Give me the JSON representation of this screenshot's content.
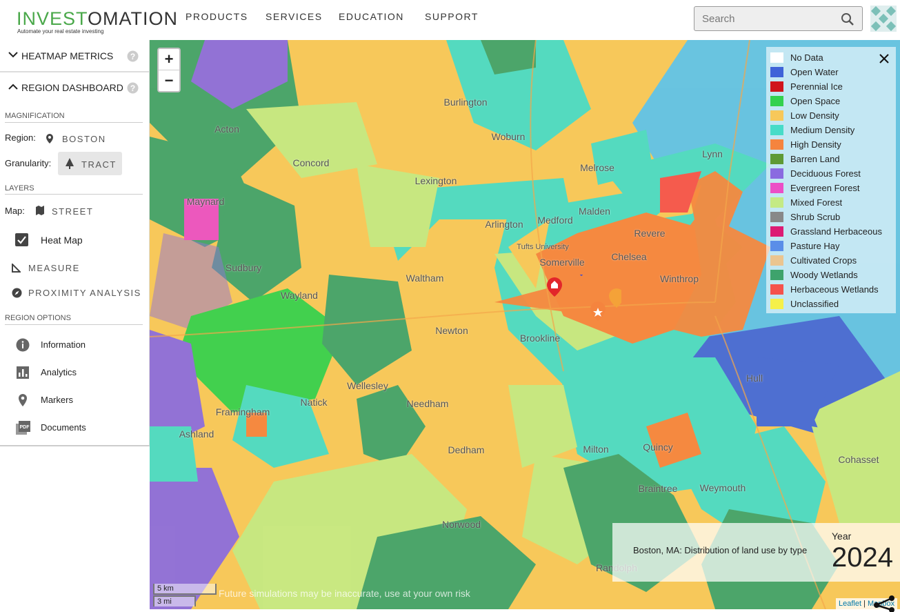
{
  "header": {
    "logo_a": "INVEST",
    "logo_b": "OMATION",
    "tagline": "Automate your real estate investing",
    "nav": [
      "PRODUCTS",
      "SERVICES",
      "EDUCATION",
      "SUPPORT"
    ],
    "search_placeholder": "Search"
  },
  "sidebar": {
    "heatmap_metrics": "HEATMAP METRICS",
    "region_dashboard": "REGION DASHBOARD",
    "magnification": "MAGNIFICATION",
    "region_label": "Region:",
    "region_value": "BOSTON",
    "granularity_label": "Granularity:",
    "granularity_value": "TRACT",
    "layers": "LAYERS",
    "map_label": "Map:",
    "map_value": "STREET",
    "heat_map": "Heat Map",
    "measure": "MEASURE",
    "proximity": "PROXIMITY ANALYSIS",
    "region_options": "REGION OPTIONS",
    "options": [
      "Information",
      "Analytics",
      "Markers",
      "Documents"
    ]
  },
  "map": {
    "zoom_in": "+",
    "zoom_out": "−",
    "legend": [
      {
        "label": "No Data",
        "color": "#ffffff"
      },
      {
        "label": "Open Water",
        "color": "#3f63d8"
      },
      {
        "label": "Perennial Ice",
        "color": "#d0141c"
      },
      {
        "label": "Open Space",
        "color": "#33d14e"
      },
      {
        "label": "Low Density",
        "color": "#f7c85a"
      },
      {
        "label": "Medium Density",
        "color": "#47dcc8"
      },
      {
        "label": "High Density",
        "color": "#f5843e"
      },
      {
        "label": "Barren Land",
        "color": "#5e9a35"
      },
      {
        "label": "Deciduous Forest",
        "color": "#8a6be0"
      },
      {
        "label": "Evergreen Forest",
        "color": "#ec4fc6"
      },
      {
        "label": "Mixed Forest",
        "color": "#c4ea84"
      },
      {
        "label": "Shrub Scrub",
        "color": "#888888"
      },
      {
        "label": "Grassland Herbaceous",
        "color": "#dc1c74"
      },
      {
        "label": "Pasture Hay",
        "color": "#5a8ee8"
      },
      {
        "label": "Cultivated Crops",
        "color": "#ebc590"
      },
      {
        "label": "Woody Wetlands",
        "color": "#3ea36c"
      },
      {
        "label": "Herbaceous Wetlands",
        "color": "#f5524c"
      },
      {
        "label": "Unclassified",
        "color": "#f5f04a"
      }
    ],
    "info": {
      "description": "Boston, MA: Distribution of land use by type",
      "year_label": "Year",
      "year": 2024
    },
    "scale": {
      "km": "5 km",
      "mi": "3 mi"
    },
    "warning": "Future simulations may be inaccurate, use at your own risk",
    "attribution": {
      "leaflet": "Leaflet",
      "separator": "|",
      "mapbox": "Mapbox"
    },
    "places": [
      "Burlington",
      "Woburn",
      "Lexington",
      "Concord",
      "Acton",
      "Melrose",
      "Lynn",
      "Arlington",
      "Medford",
      "Malden",
      "Revere",
      "Somerville",
      "Chelsea",
      "Winthrop",
      "Waltham",
      "Newton",
      "Brookline",
      "Sudbury",
      "Wayland",
      "Framingham",
      "Natick",
      "Wellesley",
      "Needham",
      "Dedham",
      "Milton",
      "Quincy",
      "Braintree",
      "Weymouth",
      "Norwood",
      "Randolph",
      "Hull",
      "Cohasset",
      "Maynard",
      "Ashland",
      "Tufts University"
    ]
  }
}
